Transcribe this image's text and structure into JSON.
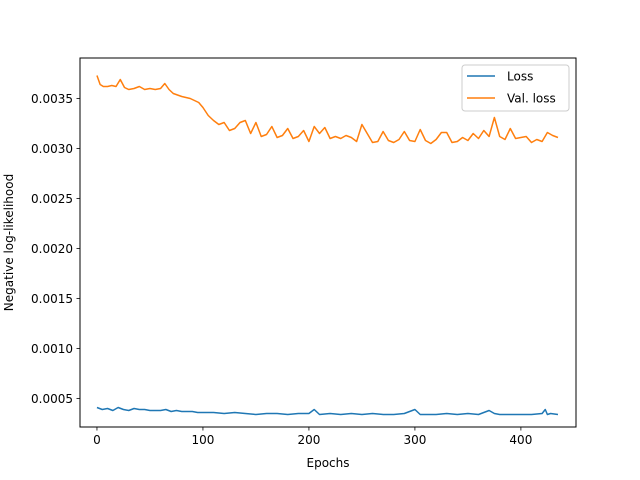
{
  "chart_data": {
    "type": "line",
    "title": "",
    "xlabel": "Epochs",
    "ylabel": "Negative log-likelihood",
    "xlim": [
      -16,
      452
    ],
    "ylim": [
      0.000215,
      0.003905
    ],
    "xticks": [
      0,
      100,
      200,
      300,
      400
    ],
    "xtick_labels": [
      "0",
      "100",
      "200",
      "300",
      "400"
    ],
    "yticks": [
      0.0005,
      0.001,
      0.0015,
      0.002,
      0.0025,
      0.003,
      0.0035
    ],
    "ytick_labels": [
      "0.0005",
      "0.0010",
      "0.0015",
      "0.0020",
      "0.0025",
      "0.0030",
      "0.0035"
    ],
    "grid": false,
    "legend_position": "top-right",
    "series": [
      {
        "name": "Loss",
        "color": "#1f77b4",
        "x": [
          0,
          5,
          10,
          15,
          20,
          25,
          30,
          35,
          40,
          45,
          50,
          55,
          60,
          65,
          70,
          75,
          80,
          85,
          90,
          95,
          100,
          110,
          120,
          130,
          140,
          150,
          160,
          170,
          180,
          190,
          200,
          205,
          210,
          220,
          230,
          240,
          250,
          260,
          270,
          280,
          290,
          300,
          305,
          310,
          320,
          330,
          340,
          350,
          360,
          370,
          375,
          380,
          390,
          400,
          410,
          420,
          423,
          425,
          428,
          435
        ],
        "y": [
          0.00041,
          0.00039,
          0.0004,
          0.00038,
          0.00041,
          0.00039,
          0.00038,
          0.0004,
          0.00039,
          0.00039,
          0.00038,
          0.00038,
          0.00038,
          0.00039,
          0.00037,
          0.00038,
          0.00037,
          0.00037,
          0.00037,
          0.00036,
          0.00036,
          0.00036,
          0.00035,
          0.00036,
          0.00035,
          0.00034,
          0.00035,
          0.00035,
          0.00034,
          0.00035,
          0.00035,
          0.00039,
          0.00034,
          0.00035,
          0.00034,
          0.00035,
          0.00034,
          0.00035,
          0.00034,
          0.00034,
          0.00035,
          0.00039,
          0.00034,
          0.00034,
          0.00034,
          0.00035,
          0.00034,
          0.00035,
          0.00034,
          0.00038,
          0.00035,
          0.00034,
          0.00034,
          0.00034,
          0.00034,
          0.00035,
          0.00039,
          0.00034,
          0.00035,
          0.00034
        ]
      },
      {
        "name": "Val. loss",
        "color": "#ff7f0e",
        "x": [
          0,
          3,
          6,
          10,
          14,
          18,
          22,
          26,
          30,
          35,
          40,
          45,
          50,
          55,
          60,
          64,
          68,
          72,
          80,
          88,
          96,
          100,
          105,
          110,
          115,
          120,
          125,
          130,
          135,
          140,
          145,
          150,
          155,
          160,
          165,
          170,
          175,
          180,
          185,
          190,
          195,
          200,
          205,
          210,
          215,
          220,
          225,
          230,
          235,
          240,
          245,
          250,
          255,
          260,
          265,
          270,
          275,
          280,
          285,
          290,
          295,
          300,
          305,
          310,
          315,
          320,
          325,
          330,
          335,
          340,
          345,
          350,
          355,
          360,
          365,
          370,
          375,
          380,
          385,
          390,
          395,
          400,
          405,
          410,
          415,
          420,
          425,
          430,
          435
        ],
        "y": [
          0.00373,
          0.00364,
          0.00362,
          0.00362,
          0.00363,
          0.00362,
          0.00369,
          0.00361,
          0.00359,
          0.0036,
          0.00362,
          0.00359,
          0.0036,
          0.00359,
          0.0036,
          0.00365,
          0.00359,
          0.00355,
          0.00352,
          0.0035,
          0.00346,
          0.00341,
          0.00333,
          0.00328,
          0.00324,
          0.00326,
          0.00318,
          0.0032,
          0.00326,
          0.00328,
          0.00315,
          0.00326,
          0.00312,
          0.00314,
          0.00322,
          0.00311,
          0.00313,
          0.0032,
          0.0031,
          0.00312,
          0.00318,
          0.00307,
          0.00322,
          0.00315,
          0.00321,
          0.0031,
          0.00312,
          0.0031,
          0.00313,
          0.00311,
          0.00307,
          0.00324,
          0.00315,
          0.00306,
          0.00307,
          0.00317,
          0.00308,
          0.00306,
          0.00309,
          0.00317,
          0.00308,
          0.00307,
          0.00319,
          0.00308,
          0.00305,
          0.00309,
          0.00316,
          0.00316,
          0.00306,
          0.00307,
          0.00311,
          0.00308,
          0.00315,
          0.0031,
          0.00318,
          0.00312,
          0.00331,
          0.00312,
          0.00309,
          0.0032,
          0.0031,
          0.00311,
          0.00312,
          0.00306,
          0.00309,
          0.00307,
          0.00316,
          0.00313,
          0.00311
        ]
      }
    ]
  }
}
